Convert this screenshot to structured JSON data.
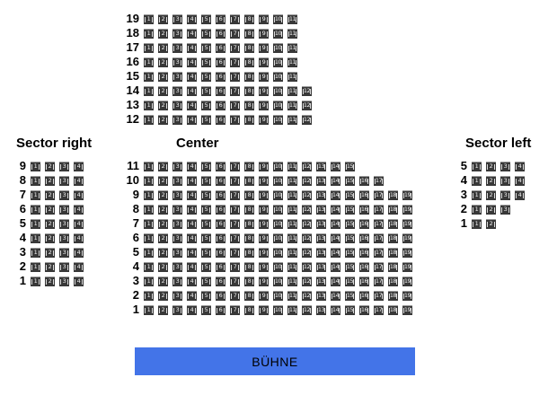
{
  "sections": {
    "balcony": {
      "rows": [
        {
          "row": "19",
          "seats": 11
        },
        {
          "row": "18",
          "seats": 11
        },
        {
          "row": "17",
          "seats": 11
        },
        {
          "row": "16",
          "seats": 11
        },
        {
          "row": "15",
          "seats": 11
        },
        {
          "row": "14",
          "seats": 12
        },
        {
          "row": "13",
          "seats": 12
        },
        {
          "row": "12",
          "seats": 12
        }
      ]
    },
    "sector_right": {
      "label": "Sector right",
      "rows": [
        {
          "row": "9",
          "seats": 4
        },
        {
          "row": "8",
          "seats": 4
        },
        {
          "row": "7",
          "seats": 4
        },
        {
          "row": "6",
          "seats": 4
        },
        {
          "row": "5",
          "seats": 4
        },
        {
          "row": "4",
          "seats": 4
        },
        {
          "row": "3",
          "seats": 4
        },
        {
          "row": "2",
          "seats": 4
        },
        {
          "row": "1",
          "seats": 4
        }
      ]
    },
    "center": {
      "label": "Center",
      "rows": [
        {
          "row": "11",
          "seats": 15
        },
        {
          "row": "10",
          "seats": 17
        },
        {
          "row": "9",
          "seats": 19
        },
        {
          "row": "8",
          "seats": 19
        },
        {
          "row": "7",
          "seats": 19
        },
        {
          "row": "6",
          "seats": 19
        },
        {
          "row": "5",
          "seats": 19
        },
        {
          "row": "4",
          "seats": 19
        },
        {
          "row": "3",
          "seats": 19
        },
        {
          "row": "2",
          "seats": 19
        },
        {
          "row": "1",
          "seats": 19
        }
      ]
    },
    "sector_left": {
      "label": "Sector left",
      "rows": [
        {
          "row": "5",
          "seats": 4
        },
        {
          "row": "4",
          "seats": 4
        },
        {
          "row": "3",
          "seats": 4
        },
        {
          "row": "2",
          "seats": 3
        },
        {
          "row": "1",
          "seats": 2
        }
      ]
    }
  },
  "stage": {
    "label": "BÜHNE",
    "color": "#4374e8"
  },
  "colors": {
    "seat_fill": "#383838",
    "seat_top_edge": "#9a9a9a",
    "seat_number": "#f2f2f2",
    "text": "#000000",
    "background": "#ffffff"
  }
}
